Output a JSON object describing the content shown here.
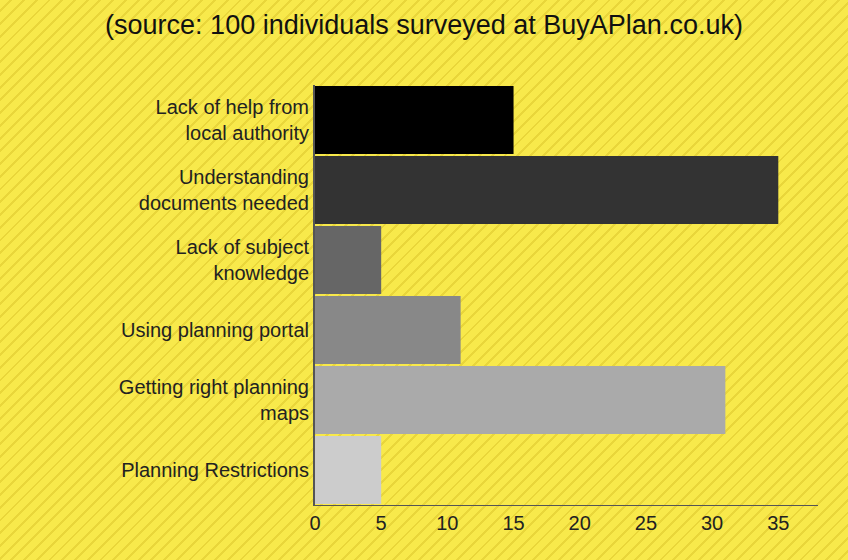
{
  "chart_data": {
    "type": "bar",
    "title": "(source: 100 individuals surveyed at BuyAPlan.co.uk)",
    "orientation": "horizontal",
    "categories": [
      "Lack of help from local authority",
      "Understanding documents needed",
      "Lack of subject knowledge",
      "Using planning portal",
      "Getting right planning maps",
      "Planning Restrictions"
    ],
    "values": [
      15,
      35,
      5,
      11,
      31,
      5
    ],
    "colors": [
      "#000000",
      "#333333",
      "#666666",
      "#888888",
      "#aaaaaa",
      "#cccccc"
    ],
    "xlim": [
      0,
      38
    ],
    "xticks": [
      0,
      5,
      10,
      15,
      20,
      25,
      30,
      35
    ],
    "grid": false,
    "data_labels": false
  }
}
